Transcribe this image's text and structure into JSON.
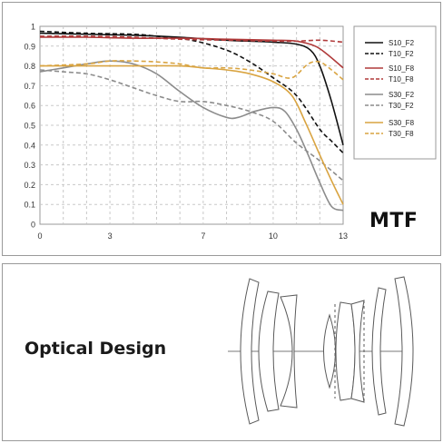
{
  "chart_data": {
    "type": "line",
    "xlim": [
      0,
      13
    ],
    "ylim": [
      0,
      1
    ],
    "x_ticks": [
      "0",
      "3",
      "7",
      "10",
      "13"
    ],
    "y_ticks": [
      "0",
      "0.1",
      "0.2",
      "0.3",
      "0.4",
      "0.5",
      "0.6",
      "0.7",
      "0.8",
      "0.9",
      "1"
    ],
    "grid": true,
    "legend_position": "right",
    "series": [
      {
        "name": "S10_F2",
        "color": "#111111",
        "dash": false,
        "points": [
          [
            0,
            0.965
          ],
          [
            2,
            0.96
          ],
          [
            4,
            0.955
          ],
          [
            6,
            0.945
          ],
          [
            8,
            0.93
          ],
          [
            10,
            0.92
          ],
          [
            11,
            0.91
          ],
          [
            11.6,
            0.88
          ],
          [
            12,
            0.8
          ],
          [
            12.5,
            0.62
          ],
          [
            13,
            0.4
          ]
        ]
      },
      {
        "name": "T10_F2",
        "color": "#111111",
        "dash": true,
        "points": [
          [
            0,
            0.975
          ],
          [
            2,
            0.965
          ],
          [
            4,
            0.96
          ],
          [
            5,
            0.95
          ],
          [
            6.5,
            0.93
          ],
          [
            8,
            0.88
          ],
          [
            9,
            0.82
          ],
          [
            10,
            0.74
          ],
          [
            11,
            0.65
          ],
          [
            12,
            0.48
          ],
          [
            12.5,
            0.42
          ],
          [
            13,
            0.36
          ]
        ]
      },
      {
        "name": "S10_F8",
        "color": "#b03a3a",
        "dash": false,
        "points": [
          [
            0,
            0.945
          ],
          [
            2,
            0.945
          ],
          [
            4,
            0.94
          ],
          [
            6,
            0.94
          ],
          [
            8,
            0.935
          ],
          [
            10,
            0.93
          ],
          [
            11,
            0.925
          ],
          [
            11.8,
            0.9
          ],
          [
            12.3,
            0.86
          ],
          [
            13,
            0.79
          ]
        ]
      },
      {
        "name": "T10_F8",
        "color": "#b03a3a",
        "dash": true,
        "points": [
          [
            0,
            0.95
          ],
          [
            2,
            0.95
          ],
          [
            4,
            0.945
          ],
          [
            6,
            0.935
          ],
          [
            8,
            0.93
          ],
          [
            10,
            0.925
          ],
          [
            11,
            0.925
          ],
          [
            12,
            0.93
          ],
          [
            13,
            0.92
          ]
        ]
      },
      {
        "name": "S30_F2",
        "color": "#8c8c8c",
        "dash": false,
        "points": [
          [
            0,
            0.77
          ],
          [
            1,
            0.79
          ],
          [
            2,
            0.81
          ],
          [
            3,
            0.825
          ],
          [
            4,
            0.81
          ],
          [
            5,
            0.76
          ],
          [
            6,
            0.67
          ],
          [
            7,
            0.59
          ],
          [
            8,
            0.54
          ],
          [
            8.5,
            0.54
          ],
          [
            9.2,
            0.57
          ],
          [
            10,
            0.59
          ],
          [
            10.5,
            0.57
          ],
          [
            11,
            0.48
          ],
          [
            11.5,
            0.35
          ],
          [
            12,
            0.21
          ],
          [
            12.5,
            0.09
          ],
          [
            13,
            0.07
          ]
        ]
      },
      {
        "name": "T30_F2",
        "color": "#8c8c8c",
        "dash": true,
        "points": [
          [
            0,
            0.78
          ],
          [
            1,
            0.77
          ],
          [
            2,
            0.76
          ],
          [
            3,
            0.73
          ],
          [
            4,
            0.69
          ],
          [
            5,
            0.65
          ],
          [
            6,
            0.62
          ],
          [
            7,
            0.62
          ],
          [
            8,
            0.6
          ],
          [
            9,
            0.57
          ],
          [
            10,
            0.52
          ],
          [
            11,
            0.41
          ],
          [
            12,
            0.32
          ],
          [
            13,
            0.22
          ]
        ]
      },
      {
        "name": "S30_F8",
        "color": "#d9a441",
        "dash": false,
        "points": [
          [
            0,
            0.8
          ],
          [
            2,
            0.8
          ],
          [
            4,
            0.8
          ],
          [
            6,
            0.8
          ],
          [
            7,
            0.79
          ],
          [
            8,
            0.78
          ],
          [
            9,
            0.76
          ],
          [
            10,
            0.72
          ],
          [
            10.8,
            0.65
          ],
          [
            11.4,
            0.51
          ],
          [
            12,
            0.35
          ],
          [
            12.5,
            0.22
          ],
          [
            13,
            0.1
          ]
        ]
      },
      {
        "name": "T30_F8",
        "color": "#d9a441",
        "dash": true,
        "points": [
          [
            0,
            0.8
          ],
          [
            2,
            0.81
          ],
          [
            3,
            0.825
          ],
          [
            4,
            0.825
          ],
          [
            5,
            0.82
          ],
          [
            6,
            0.81
          ],
          [
            7,
            0.79
          ],
          [
            8,
            0.79
          ],
          [
            9,
            0.78
          ],
          [
            10,
            0.76
          ],
          [
            10.8,
            0.74
          ],
          [
            11.5,
            0.81
          ],
          [
            12,
            0.82
          ],
          [
            12.5,
            0.78
          ],
          [
            13,
            0.73
          ]
        ]
      }
    ]
  },
  "mtf_label": "MTF",
  "optical_design_label": "Optical Design"
}
